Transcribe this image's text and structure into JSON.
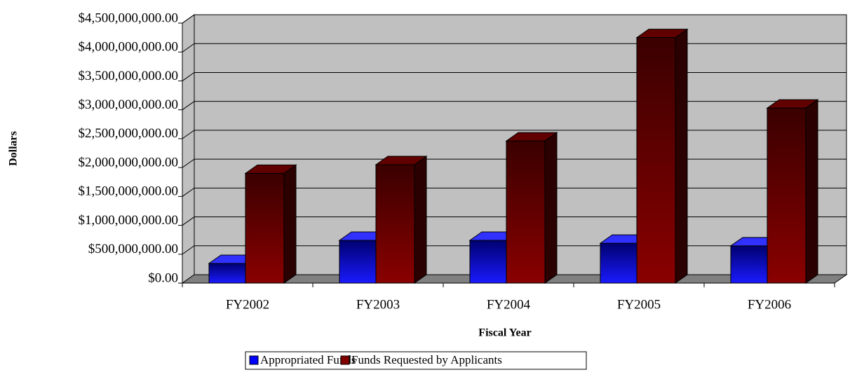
{
  "chart_data": {
    "type": "bar3d",
    "x_label": "Fiscal Year",
    "y_label": "Dollars",
    "categories": [
      "FY2002",
      "FY2003",
      "FY2004",
      "FY2005",
      "FY2006"
    ],
    "series": [
      {
        "name": "Appropriated Funds",
        "color": "#0000ff",
        "values": [
          340000000,
          740000000,
          740000000,
          690000000,
          645000000
        ]
      },
      {
        "name": "Funds Requested by Applicants",
        "color": "#800000",
        "values": [
          1900000000,
          2050000000,
          2460000000,
          4250000000,
          3030000000
        ]
      }
    ],
    "ylim": [
      0,
      4500000000
    ],
    "yticks": [
      {
        "value": 0,
        "label": "$0.00"
      },
      {
        "value": 500000000,
        "label": "$500,000,000.00"
      },
      {
        "value": 1000000000,
        "label": "$1,000,000,000.00"
      },
      {
        "value": 1500000000,
        "label": "$1,500,000,000.00"
      },
      {
        "value": 2000000000,
        "label": "$2,000,000,000.00"
      },
      {
        "value": 2500000000,
        "label": "$2,500,000,000.00"
      },
      {
        "value": 3000000000,
        "label": "$3,000,000,000.00"
      },
      {
        "value": 3500000000,
        "label": "$3,500,000,000.00"
      },
      {
        "value": 4000000000,
        "label": "$4,000,000,000.00"
      },
      {
        "value": 4500000000,
        "label": "$4,500,000,000.00"
      }
    ],
    "grid": true,
    "legend": "bottom"
  }
}
